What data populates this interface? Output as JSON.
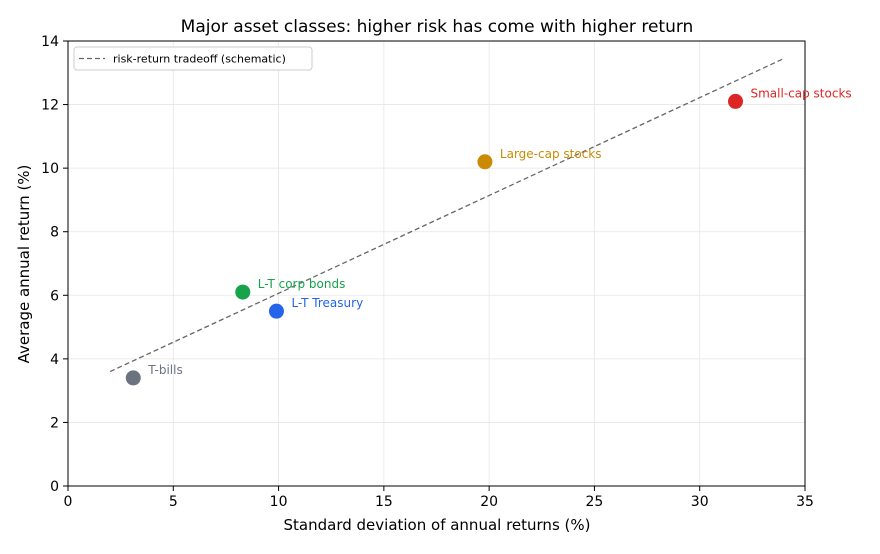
{
  "chart_data": {
    "type": "scatter",
    "title": "Major asset classes: higher risk has come with higher return",
    "xlabel": "Standard deviation of annual returns (%)",
    "ylabel": "Average annual return (%)",
    "xlim": [
      0,
      35
    ],
    "ylim": [
      0,
      14
    ],
    "xticks": [
      0,
      5,
      10,
      15,
      20,
      25,
      30,
      35
    ],
    "yticks": [
      0,
      2,
      4,
      6,
      8,
      10,
      12,
      14
    ],
    "grid": true,
    "legend": {
      "position": "top-left",
      "entries": [
        "risk-return tradeoff (schematic)"
      ]
    },
    "points": [
      {
        "label": "T-bills",
        "x": 3.1,
        "y": 3.4,
        "color": "#6b7280"
      },
      {
        "label": "L-T corp bonds",
        "x": 8.3,
        "y": 6.1,
        "color": "#16a34a"
      },
      {
        "label": "L-T Treasury",
        "x": 9.9,
        "y": 5.5,
        "color": "#2563eb"
      },
      {
        "label": "Large-cap stocks",
        "x": 19.8,
        "y": 10.2,
        "color": "#ca8a04"
      },
      {
        "label": "Small-cap stocks",
        "x": 31.7,
        "y": 12.1,
        "color": "#dc2626"
      }
    ],
    "trend_line": {
      "name": "risk-return tradeoff (schematic)",
      "x": [
        2,
        34
      ],
      "y": [
        3.6,
        13.45
      ],
      "color": "#666666",
      "style": "dashed"
    }
  }
}
